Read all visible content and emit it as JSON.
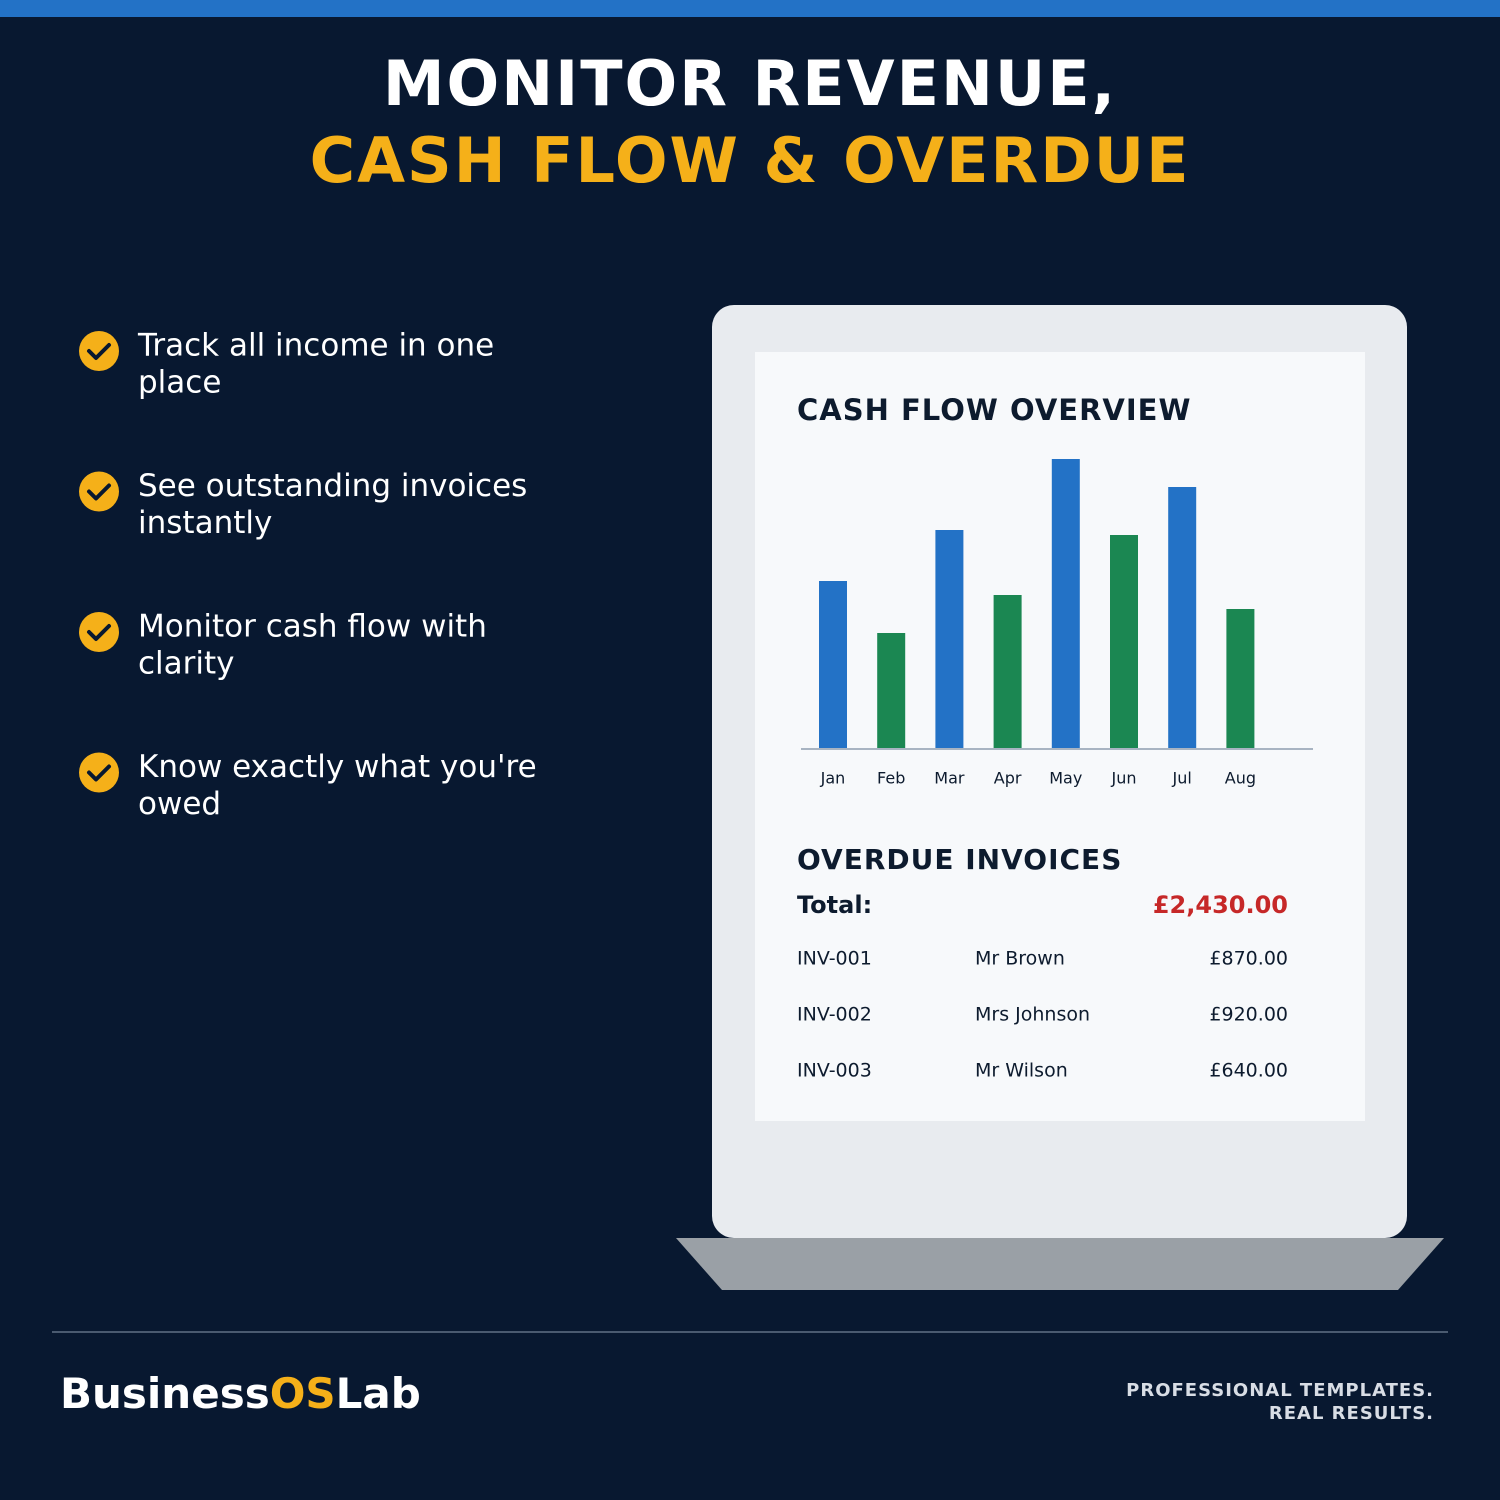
{
  "header": {
    "line1": "MONITOR REVENUE,",
    "line2": "CASH FLOW & OVERDUE"
  },
  "features": [
    [
      "Track all income in one",
      "place"
    ],
    [
      "See outstanding invoices",
      "instantly"
    ],
    [
      "Monitor cash flow with",
      "clarity"
    ],
    [
      "Know exactly what you're",
      "owed"
    ]
  ],
  "chart_data": {
    "type": "bar",
    "title": "CASH FLOW OVERVIEW",
    "categories": [
      "Jan",
      "Feb",
      "Mar",
      "Apr",
      "May",
      "Jun",
      "Jul",
      "Aug"
    ],
    "values": [
      168,
      116,
      219,
      154,
      290,
      214,
      262,
      140
    ],
    "colors": [
      "#2372c6",
      "#1b8752",
      "#2372c6",
      "#1b8752",
      "#2372c6",
      "#1b8752",
      "#2372c6",
      "#1b8752"
    ],
    "ylim": [
      0,
      300
    ]
  },
  "overdue": {
    "title": "OVERDUE INVOICES",
    "total_label": "Total:",
    "total_value": "£2,430.00",
    "rows": [
      [
        "INV-001",
        "Mr Brown",
        "£870.00"
      ],
      [
        "INV-002",
        "Mrs Johnson",
        "£920.00"
      ],
      [
        "INV-003",
        "Mr Wilson",
        "£640.00"
      ]
    ]
  },
  "footer": {
    "brand": [
      "Business",
      "OS",
      "Lab"
    ],
    "tagline": [
      "PROFESSIONAL TEMPLATES.",
      "REAL RESULTS."
    ]
  }
}
